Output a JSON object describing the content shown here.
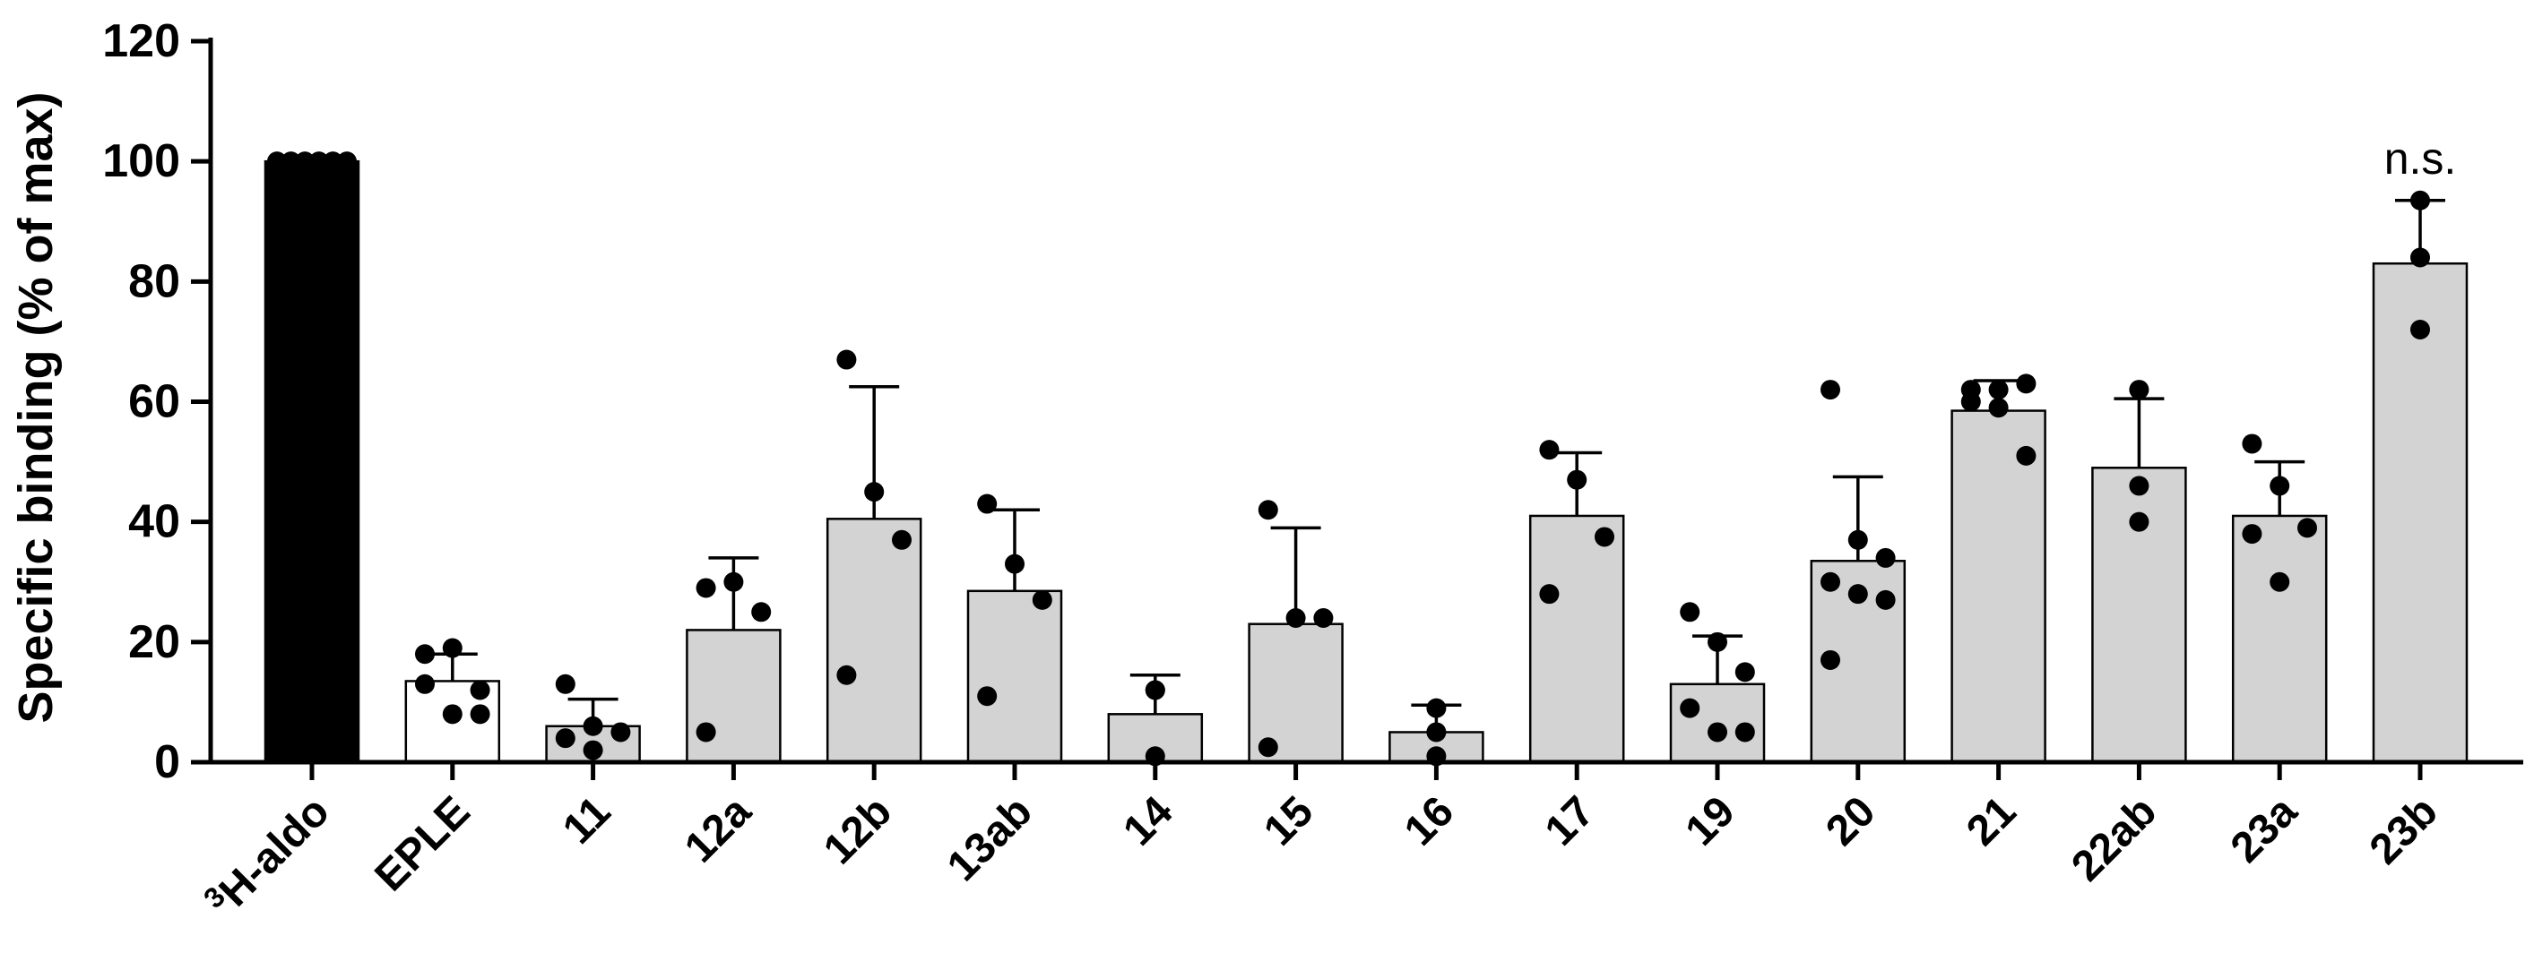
{
  "chart_data": {
    "type": "bar",
    "title": "",
    "xlabel": "",
    "ylabel": "Specific binding (% of max)",
    "ylim": [
      0,
      120
    ],
    "yticks": [
      0,
      20,
      40,
      60,
      80,
      100,
      120
    ],
    "grid": false,
    "legend": "none",
    "categories": [
      {
        "label": "H-aldo",
        "superscript": "3",
        "value": 100,
        "sd": 0,
        "color": "#000000",
        "points": [
          100,
          100,
          100,
          100,
          100,
          100
        ]
      },
      {
        "label": "EPLE",
        "value": 13.5,
        "sd": 4.5,
        "color": "#ffffff",
        "points": [
          18,
          19,
          12,
          13,
          8,
          8
        ]
      },
      {
        "label": "11",
        "value": 6,
        "sd": 4.5,
        "color": "#d3d3d3",
        "points": [
          13,
          6,
          5,
          4,
          2
        ]
      },
      {
        "label": "12a",
        "value": 22,
        "sd": 12,
        "color": "#d3d3d3",
        "points": [
          29,
          30,
          25,
          5
        ]
      },
      {
        "label": "12b",
        "value": 40.5,
        "sd": 22,
        "color": "#d3d3d3",
        "points": [
          67,
          45,
          37,
          14.5
        ]
      },
      {
        "label": "13ab",
        "value": 28.5,
        "sd": 13.5,
        "color": "#d3d3d3",
        "points": [
          43,
          33,
          27,
          11
        ]
      },
      {
        "label": "14",
        "value": 8,
        "sd": 6.5,
        "color": "#d3d3d3",
        "points": [
          12,
          12,
          1
        ]
      },
      {
        "label": "15",
        "value": 23,
        "sd": 16,
        "color": "#d3d3d3",
        "points": [
          42,
          24,
          24,
          2.5
        ]
      },
      {
        "label": "16",
        "value": 5,
        "sd": 4.5,
        "color": "#d3d3d3",
        "points": [
          9,
          5,
          1
        ]
      },
      {
        "label": "17",
        "value": 41,
        "sd": 10.5,
        "color": "#d3d3d3",
        "points": [
          52,
          47,
          37.5,
          28
        ]
      },
      {
        "label": "19",
        "value": 13,
        "sd": 8,
        "color": "#d3d3d3",
        "points": [
          25,
          20,
          15,
          9,
          5,
          5
        ]
      },
      {
        "label": "20",
        "value": 33.5,
        "sd": 14,
        "color": "#d3d3d3",
        "points": [
          62,
          37,
          34,
          30,
          28,
          27,
          17
        ]
      },
      {
        "label": "21",
        "value": 58.5,
        "sd": 5,
        "color": "#d3d3d3",
        "points": [
          62,
          62,
          63,
          60,
          59,
          51
        ]
      },
      {
        "label": "22ab",
        "value": 49,
        "sd": 11.5,
        "color": "#d3d3d3",
        "points": [
          62,
          46,
          40
        ]
      },
      {
        "label": "23a",
        "value": 41,
        "sd": 9,
        "color": "#d3d3d3",
        "points": [
          53,
          46,
          39,
          38,
          30
        ]
      },
      {
        "label": "23b",
        "value": 83,
        "sd": 10.5,
        "color": "#d3d3d3",
        "points": [
          93.5,
          84,
          72
        ]
      }
    ],
    "annotations": [
      {
        "category": "23b",
        "text": "n.s."
      }
    ]
  }
}
